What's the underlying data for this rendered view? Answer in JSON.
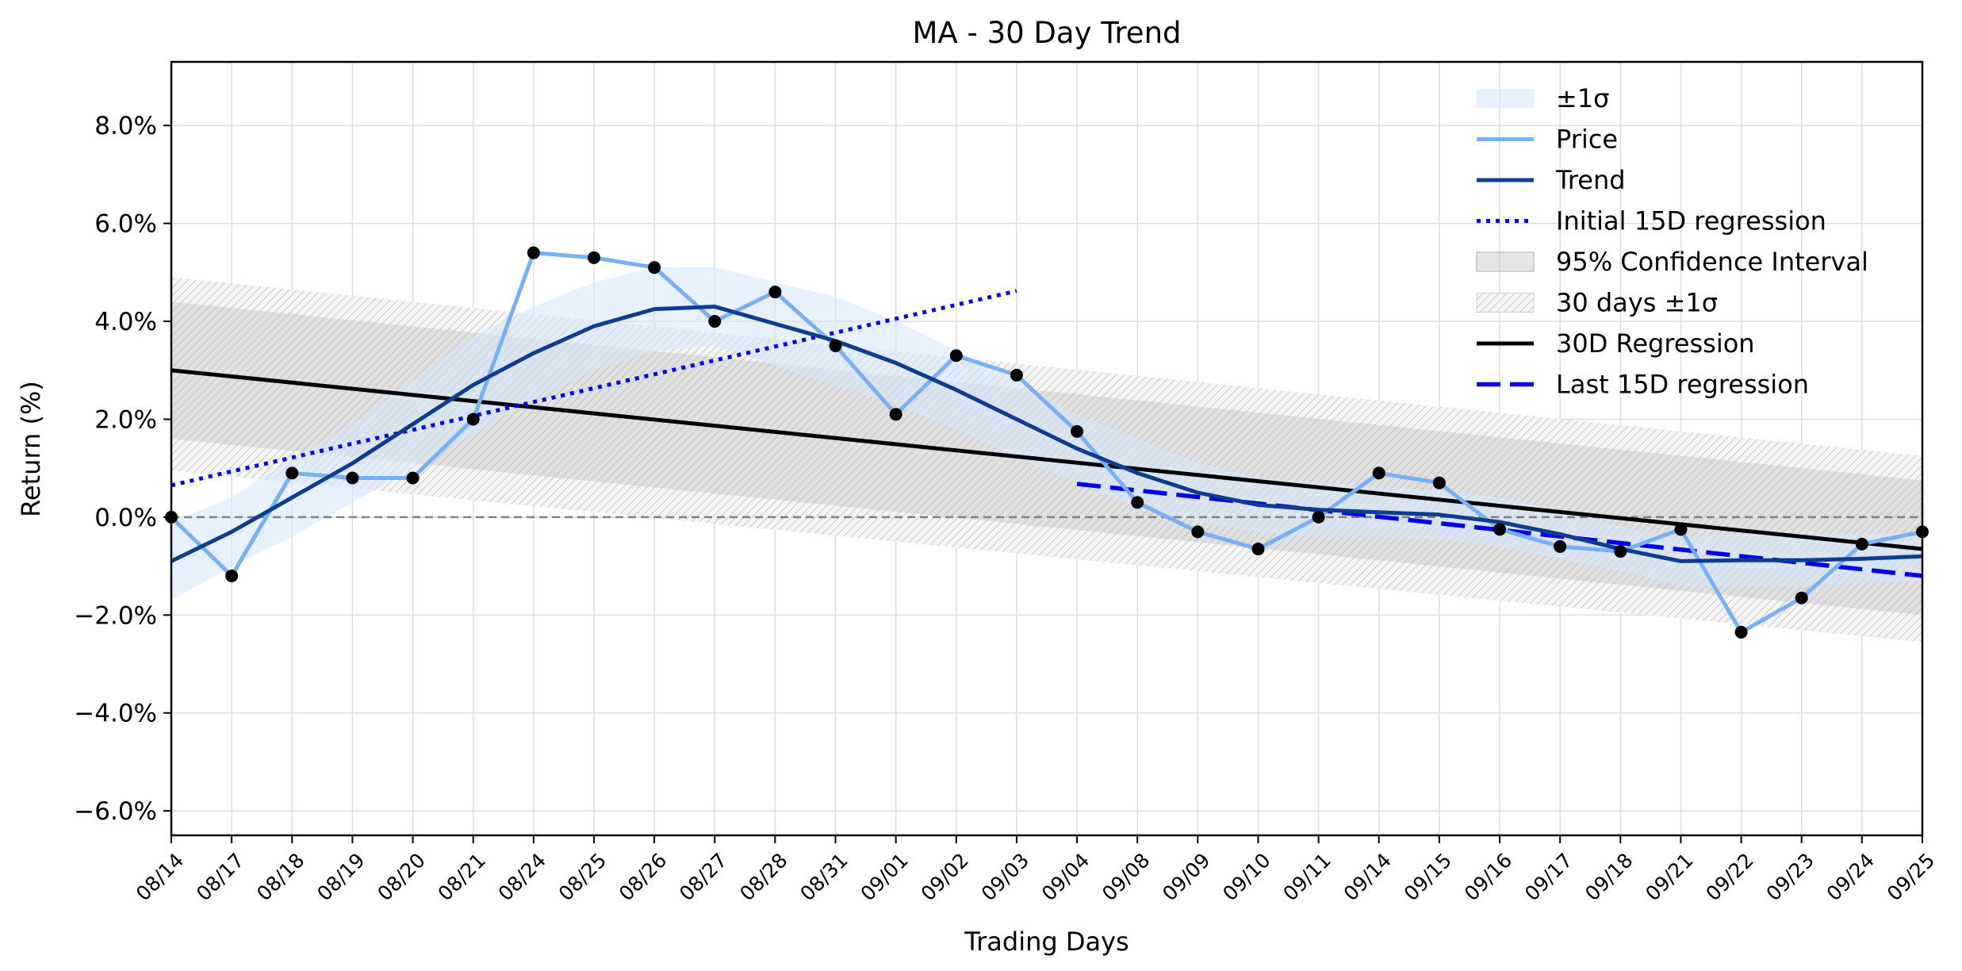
{
  "chart_data": {
    "type": "line",
    "title": "MA - 30 Day Trend",
    "xlabel": "Trading Days",
    "ylabel": "Return (%)",
    "categories": [
      "08/14",
      "08/17",
      "08/18",
      "08/19",
      "08/20",
      "08/21",
      "08/24",
      "08/25",
      "08/26",
      "08/27",
      "08/28",
      "08/31",
      "09/01",
      "09/02",
      "09/03",
      "09/04",
      "09/08",
      "09/09",
      "09/10",
      "09/11",
      "09/14",
      "09/15",
      "09/16",
      "09/17",
      "09/18",
      "09/21",
      "09/22",
      "09/23",
      "09/24",
      "09/25"
    ],
    "ylim": [
      -6.5,
      9.3
    ],
    "yticks": [
      -6,
      -4,
      -2,
      0,
      2,
      4,
      6,
      8
    ],
    "ytick_labels": [
      "−6.0%",
      "−4.0%",
      "−2.0%",
      "0.0%",
      "2.0%",
      "4.0%",
      "6.0%",
      "8.0%"
    ],
    "grid": true,
    "legend_position": "top-right",
    "legend": [
      {
        "label": "±1σ",
        "kind": "patch-band"
      },
      {
        "label": "Price",
        "kind": "line-price"
      },
      {
        "label": "Trend",
        "kind": "line-trend"
      },
      {
        "label": "Initial 15D regression",
        "kind": "line-dotted"
      },
      {
        "label": "95% Confidence Interval",
        "kind": "patch-ci"
      },
      {
        "label": "30 days ±1σ",
        "kind": "patch-hatch"
      },
      {
        "label": "30D Regression",
        "kind": "line-black"
      },
      {
        "label": "Last 15D regression",
        "kind": "line-dashed"
      }
    ],
    "colors": {
      "price": "#78b0f5",
      "trend": "#0d3d8f",
      "sigma_band": "#d6e8fb",
      "ci_band": "#b9b9b9",
      "hatch_band": "#c8c8c8",
      "regression30": "#000000",
      "regression15": "#0000ee",
      "zero_line": "#808080",
      "points": "#000000"
    },
    "series": [
      {
        "name": "Price",
        "values": [
          0.0,
          -1.2,
          0.9,
          0.8,
          0.8,
          2.0,
          5.4,
          5.3,
          5.1,
          4.0,
          4.6,
          3.5,
          2.1,
          3.3,
          2.9,
          1.75,
          0.3,
          -0.3,
          -0.65,
          0.0,
          0.9,
          0.7,
          -0.25,
          -0.6,
          -0.7,
          -0.25,
          -2.35,
          -1.65,
          -0.55,
          -0.3
        ]
      },
      {
        "name": "Trend",
        "values": [
          -0.9,
          -0.3,
          0.4,
          1.1,
          1.9,
          2.7,
          3.35,
          3.9,
          4.25,
          4.3,
          3.95,
          3.6,
          3.15,
          2.6,
          2.0,
          1.4,
          0.9,
          0.5,
          0.25,
          0.15,
          0.1,
          0.05,
          -0.1,
          -0.35,
          -0.65,
          -0.9,
          -0.88,
          -0.88,
          -0.85,
          -0.8
        ]
      },
      {
        "name": "±1σ",
        "lower": [
          -1.7,
          -1.0,
          -0.4,
          0.3,
          1.0,
          1.7,
          2.4,
          3.0,
          3.4,
          3.5,
          3.1,
          2.7,
          2.3,
          1.8,
          1.2,
          0.7,
          0.2,
          -0.1,
          -0.3,
          -0.4,
          -0.4,
          -0.45,
          -0.6,
          -0.85,
          -1.1,
          -1.4,
          -1.4,
          -1.4,
          -1.35,
          -1.3
        ],
        "upper": [
          -0.1,
          0.4,
          1.2,
          1.9,
          2.8,
          3.7,
          4.3,
          4.8,
          5.1,
          5.1,
          4.8,
          4.5,
          4.0,
          3.4,
          2.8,
          2.1,
          1.6,
          1.1,
          0.8,
          0.7,
          0.6,
          0.55,
          0.4,
          0.15,
          -0.2,
          -0.4,
          -0.35,
          -0.35,
          -0.35,
          -0.3
        ]
      },
      {
        "name": "Initial 15D regression",
        "x_start": 0,
        "x_end": 14,
        "y_start": 0.65,
        "y_end": 4.62
      },
      {
        "name": "Last 15D regression",
        "x_start": 15,
        "x_end": 29,
        "y_start": 0.68,
        "y_end": -1.2
      },
      {
        "name": "30D Regression",
        "x_start": 0,
        "x_end": 29,
        "y_start": 3.0,
        "y_end": -0.65
      },
      {
        "name": "95% Confidence Interval",
        "lower_start": 1.6,
        "lower_end": -2.0,
        "upper_start": 4.4,
        "upper_end": 0.75
      },
      {
        "name": "30 days ±1σ",
        "lower_start": 0.95,
        "lower_end": -2.55,
        "upper_start": 4.9,
        "upper_end": 1.25
      }
    ]
  }
}
